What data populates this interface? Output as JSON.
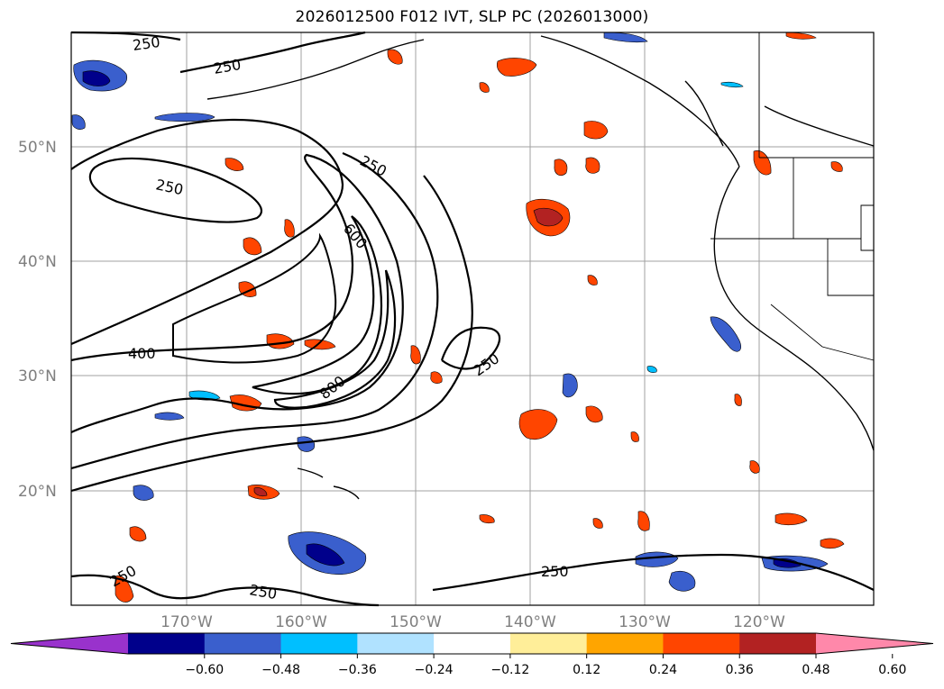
{
  "title": "2026012500 F012 IVT, SLP PC (2026013000)",
  "lat_labels": [
    "50°N",
    "40°N",
    "30°N",
    "20°N"
  ],
  "lon_labels": [
    "170°W",
    "160°W",
    "150°W",
    "140°W",
    "130°W",
    "120°W"
  ],
  "contour_labels": [
    "250",
    "250",
    "250",
    "250",
    "600",
    "400",
    "800",
    "250",
    "250",
    "250",
    "250"
  ],
  "colorbar": {
    "ticks": [
      "−0.60",
      "−0.48",
      "−0.36",
      "−0.24",
      "−0.12",
      "0.12",
      "0.24",
      "0.36",
      "0.48",
      "0.60"
    ],
    "colors": [
      "#9932cc",
      "#00008b",
      "#3a5fcd",
      "#00bfff",
      "#b0e2ff",
      "#ffffff",
      "#ffee99",
      "#ffa500",
      "#ff4500",
      "#b22222",
      "#ff88aa"
    ]
  },
  "colors": {
    "contour": "#000000",
    "grid": "#a0a0a0",
    "coast": "#000000"
  }
}
